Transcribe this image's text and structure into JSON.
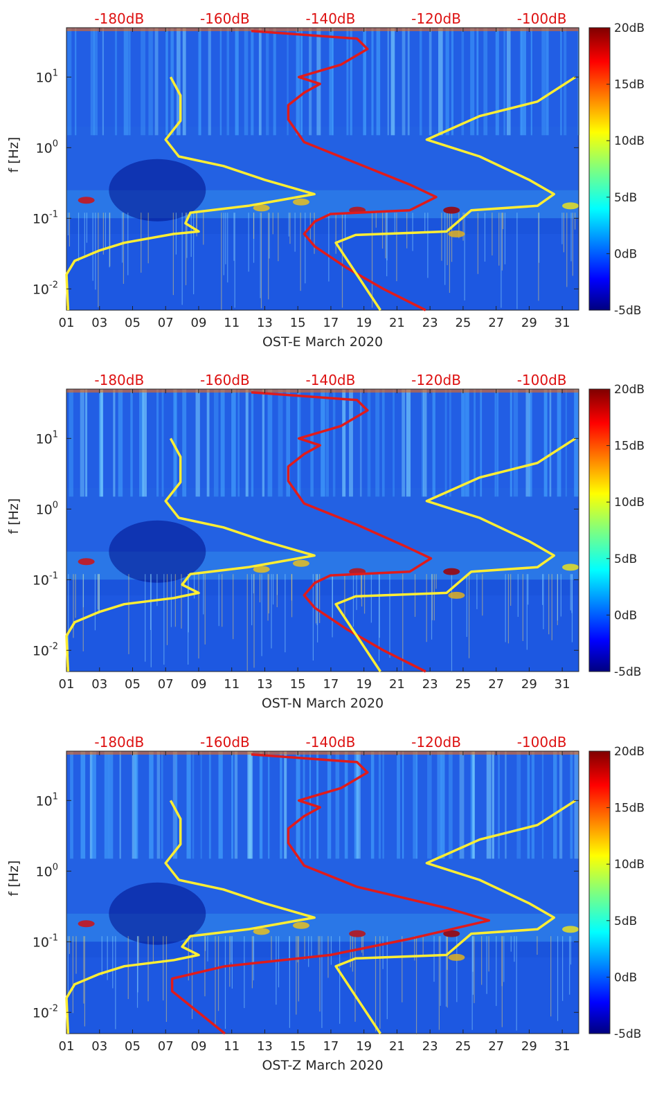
{
  "figure": {
    "top_ticks": [
      "-180dB",
      "-160dB",
      "-140dB",
      "-120dB",
      "-100dB"
    ],
    "x_ticks": [
      "01",
      "03",
      "05",
      "07",
      "09",
      "11",
      "13",
      "15",
      "17",
      "19",
      "21",
      "23",
      "25",
      "27",
      "29",
      "31"
    ],
    "y_tick_exponents": [
      "1",
      "0",
      "-1",
      "-2"
    ],
    "y_tick_base": "10",
    "colorbar_ticks": [
      "20dB",
      "15dB",
      "10dB",
      "5dB",
      "0dB",
      "-5dB"
    ],
    "ylabel": "f [Hz]",
    "colors": {
      "yellow_curve": "#ffee33",
      "red_curve": "#e01b1b",
      "top_axis_text": "#dd1111"
    }
  },
  "chart_data": [
    {
      "type": "heatmap",
      "title": "",
      "xlabel": "OST-E March 2020",
      "ylabel": "f [Hz]",
      "x_axis": "day of March 2020",
      "xlim": [
        1,
        32
      ],
      "y_scale": "log",
      "ylim": [
        0.005,
        50
      ],
      "colorbar": {
        "label_units": "dB",
        "range": [
          -5,
          20
        ],
        "ticks": [
          20,
          15,
          10,
          5,
          0,
          -5
        ],
        "colormap": "jet"
      },
      "top_axis": {
        "label_units": "dB",
        "range": [
          -190,
          -93
        ],
        "ticks": [
          -180,
          -160,
          -140,
          -120,
          -100
        ]
      },
      "series": [
        {
          "name": "",
          "color": "yellow",
          "axis": "bottom",
          "points": [
            [
              1.1,
              0.005
            ],
            [
              1.0,
              0.016
            ],
            [
              1.5,
              0.025
            ],
            [
              3.0,
              0.035
            ],
            [
              4.5,
              0.045
            ],
            [
              7.5,
              0.06
            ],
            [
              9.0,
              0.065
            ],
            [
              8.2,
              0.085
            ],
            [
              8.5,
              0.12
            ],
            [
              12.0,
              0.15
            ],
            [
              16.0,
              0.22
            ],
            [
              13.0,
              0.35
            ],
            [
              10.5,
              0.55
            ],
            [
              7.8,
              0.75
            ],
            [
              7.0,
              1.3
            ],
            [
              7.9,
              2.4
            ],
            [
              7.9,
              5.5
            ],
            [
              7.3,
              10
            ]
          ]
        },
        {
          "name": "",
          "color": "red",
          "axis": "top",
          "points": [
            [
              -122,
              0.005
            ],
            [
              -130,
              0.01
            ],
            [
              -137,
              0.02
            ],
            [
              -143,
              0.04
            ],
            [
              -145,
              0.06
            ],
            [
              -143,
              0.09
            ],
            [
              -140,
              0.115
            ],
            [
              -125,
              0.13
            ],
            [
              -120,
              0.2
            ],
            [
              -125,
              0.3
            ],
            [
              -135,
              0.6
            ],
            [
              -145,
              1.2
            ],
            [
              -148,
              2.5
            ],
            [
              -148,
              4
            ],
            [
              -145,
              6
            ],
            [
              -142,
              8
            ],
            [
              -146,
              10
            ],
            [
              -138,
              15
            ],
            [
              -133,
              25
            ],
            [
              -135,
              35
            ],
            [
              -155,
              45
            ]
          ]
        },
        {
          "name": "",
          "color": "yellow",
          "axis": "bottom",
          "points": [
            [
              20.0,
              0.005
            ],
            [
              17.3,
              0.045
            ],
            [
              18.5,
              0.058
            ],
            [
              24.0,
              0.065
            ],
            [
              25.5,
              0.13
            ],
            [
              29.5,
              0.15
            ],
            [
              30.5,
              0.22
            ],
            [
              29.0,
              0.35
            ],
            [
              26.0,
              0.75
            ],
            [
              22.8,
              1.3
            ],
            [
              26.0,
              2.8
            ],
            [
              29.5,
              4.5
            ],
            [
              31.8,
              10
            ]
          ]
        }
      ]
    },
    {
      "type": "heatmap",
      "title": "",
      "xlabel": "OST-N March 2020",
      "ylabel": "f [Hz]",
      "x_axis": "day of March 2020",
      "xlim": [
        1,
        32
      ],
      "y_scale": "log",
      "ylim": [
        0.005,
        50
      ],
      "colorbar": {
        "label_units": "dB",
        "range": [
          -5,
          20
        ],
        "ticks": [
          20,
          15,
          10,
          5,
          0,
          -5
        ],
        "colormap": "jet"
      },
      "top_axis": {
        "label_units": "dB",
        "range": [
          -190,
          -93
        ],
        "ticks": [
          -180,
          -160,
          -140,
          -120,
          -100
        ]
      },
      "series": [
        {
          "name": "",
          "color": "yellow",
          "axis": "bottom",
          "points": [
            [
              1.1,
              0.005
            ],
            [
              1.0,
              0.016
            ],
            [
              1.5,
              0.025
            ],
            [
              3.0,
              0.035
            ],
            [
              4.5,
              0.045
            ],
            [
              7.5,
              0.055
            ],
            [
              9.0,
              0.065
            ],
            [
              8.0,
              0.085
            ],
            [
              8.5,
              0.12
            ],
            [
              12.0,
              0.15
            ],
            [
              16.0,
              0.22
            ],
            [
              13.0,
              0.35
            ],
            [
              10.5,
              0.55
            ],
            [
              7.8,
              0.75
            ],
            [
              7.0,
              1.3
            ],
            [
              7.9,
              2.4
            ],
            [
              7.9,
              5.5
            ],
            [
              7.3,
              10
            ]
          ]
        },
        {
          "name": "",
          "color": "red",
          "axis": "top",
          "points": [
            [
              -122,
              0.005
            ],
            [
              -130,
              0.01
            ],
            [
              -137,
              0.02
            ],
            [
              -143,
              0.04
            ],
            [
              -145,
              0.06
            ],
            [
              -143,
              0.09
            ],
            [
              -140,
              0.115
            ],
            [
              -125,
              0.13
            ],
            [
              -121,
              0.2
            ],
            [
              -126,
              0.3
            ],
            [
              -135,
              0.6
            ],
            [
              -145,
              1.2
            ],
            [
              -148,
              2.5
            ],
            [
              -148,
              4
            ],
            [
              -145,
              6
            ],
            [
              -142,
              8
            ],
            [
              -146,
              10
            ],
            [
              -138,
              15
            ],
            [
              -133,
              25
            ],
            [
              -135,
              35
            ],
            [
              -155,
              45
            ]
          ]
        },
        {
          "name": "",
          "color": "yellow",
          "axis": "bottom",
          "points": [
            [
              20.0,
              0.005
            ],
            [
              17.3,
              0.045
            ],
            [
              18.5,
              0.058
            ],
            [
              24.0,
              0.065
            ],
            [
              25.5,
              0.13
            ],
            [
              29.5,
              0.15
            ],
            [
              30.5,
              0.22
            ],
            [
              29.0,
              0.35
            ],
            [
              26.0,
              0.75
            ],
            [
              22.8,
              1.3
            ],
            [
              26.0,
              2.8
            ],
            [
              29.5,
              4.5
            ],
            [
              31.8,
              10
            ]
          ]
        }
      ]
    },
    {
      "type": "heatmap",
      "title": "",
      "xlabel": "OST-Z March 2020",
      "ylabel": "f [Hz]",
      "x_axis": "day of March 2020",
      "xlim": [
        1,
        32
      ],
      "y_scale": "log",
      "ylim": [
        0.005,
        50
      ],
      "colorbar": {
        "label_units": "dB",
        "range": [
          -5,
          20
        ],
        "ticks": [
          20,
          15,
          10,
          5,
          0,
          -5
        ],
        "colormap": "jet"
      },
      "top_axis": {
        "label_units": "dB",
        "range": [
          -190,
          -93
        ],
        "ticks": [
          -180,
          -160,
          -140,
          -120,
          -100
        ]
      },
      "series": [
        {
          "name": "",
          "color": "yellow",
          "axis": "bottom",
          "points": [
            [
              1.1,
              0.005
            ],
            [
              1.0,
              0.016
            ],
            [
              1.5,
              0.025
            ],
            [
              3.0,
              0.035
            ],
            [
              4.5,
              0.045
            ],
            [
              7.5,
              0.055
            ],
            [
              9.0,
              0.065
            ],
            [
              8.0,
              0.085
            ],
            [
              8.5,
              0.12
            ],
            [
              12.0,
              0.15
            ],
            [
              16.0,
              0.22
            ],
            [
              13.0,
              0.35
            ],
            [
              10.5,
              0.55
            ],
            [
              7.8,
              0.75
            ],
            [
              7.0,
              1.3
            ],
            [
              7.9,
              2.4
            ],
            [
              7.9,
              5.5
            ],
            [
              7.3,
              10
            ]
          ]
        },
        {
          "name": "",
          "color": "red",
          "axis": "top",
          "points": [
            [
              -160,
              0.005
            ],
            [
              -165,
              0.01
            ],
            [
              -170,
              0.02
            ],
            [
              -170,
              0.03
            ],
            [
              -160,
              0.045
            ],
            [
              -140,
              0.065
            ],
            [
              -125,
              0.11
            ],
            [
              -110,
              0.2
            ],
            [
              -118,
              0.3
            ],
            [
              -135,
              0.6
            ],
            [
              -145,
              1.2
            ],
            [
              -148,
              2.5
            ],
            [
              -148,
              4
            ],
            [
              -145,
              6
            ],
            [
              -142,
              8
            ],
            [
              -146,
              10
            ],
            [
              -138,
              15
            ],
            [
              -133,
              25
            ],
            [
              -135,
              35
            ],
            [
              -155,
              45
            ]
          ]
        },
        {
          "name": "",
          "color": "yellow",
          "axis": "bottom",
          "points": [
            [
              20.0,
              0.005
            ],
            [
              17.3,
              0.045
            ],
            [
              18.5,
              0.058
            ],
            [
              24.0,
              0.065
            ],
            [
              25.5,
              0.13
            ],
            [
              29.5,
              0.15
            ],
            [
              30.5,
              0.22
            ],
            [
              29.0,
              0.35
            ],
            [
              26.0,
              0.75
            ],
            [
              22.8,
              1.3
            ],
            [
              26.0,
              2.8
            ],
            [
              29.5,
              4.5
            ],
            [
              31.8,
              10
            ]
          ]
        }
      ]
    }
  ]
}
